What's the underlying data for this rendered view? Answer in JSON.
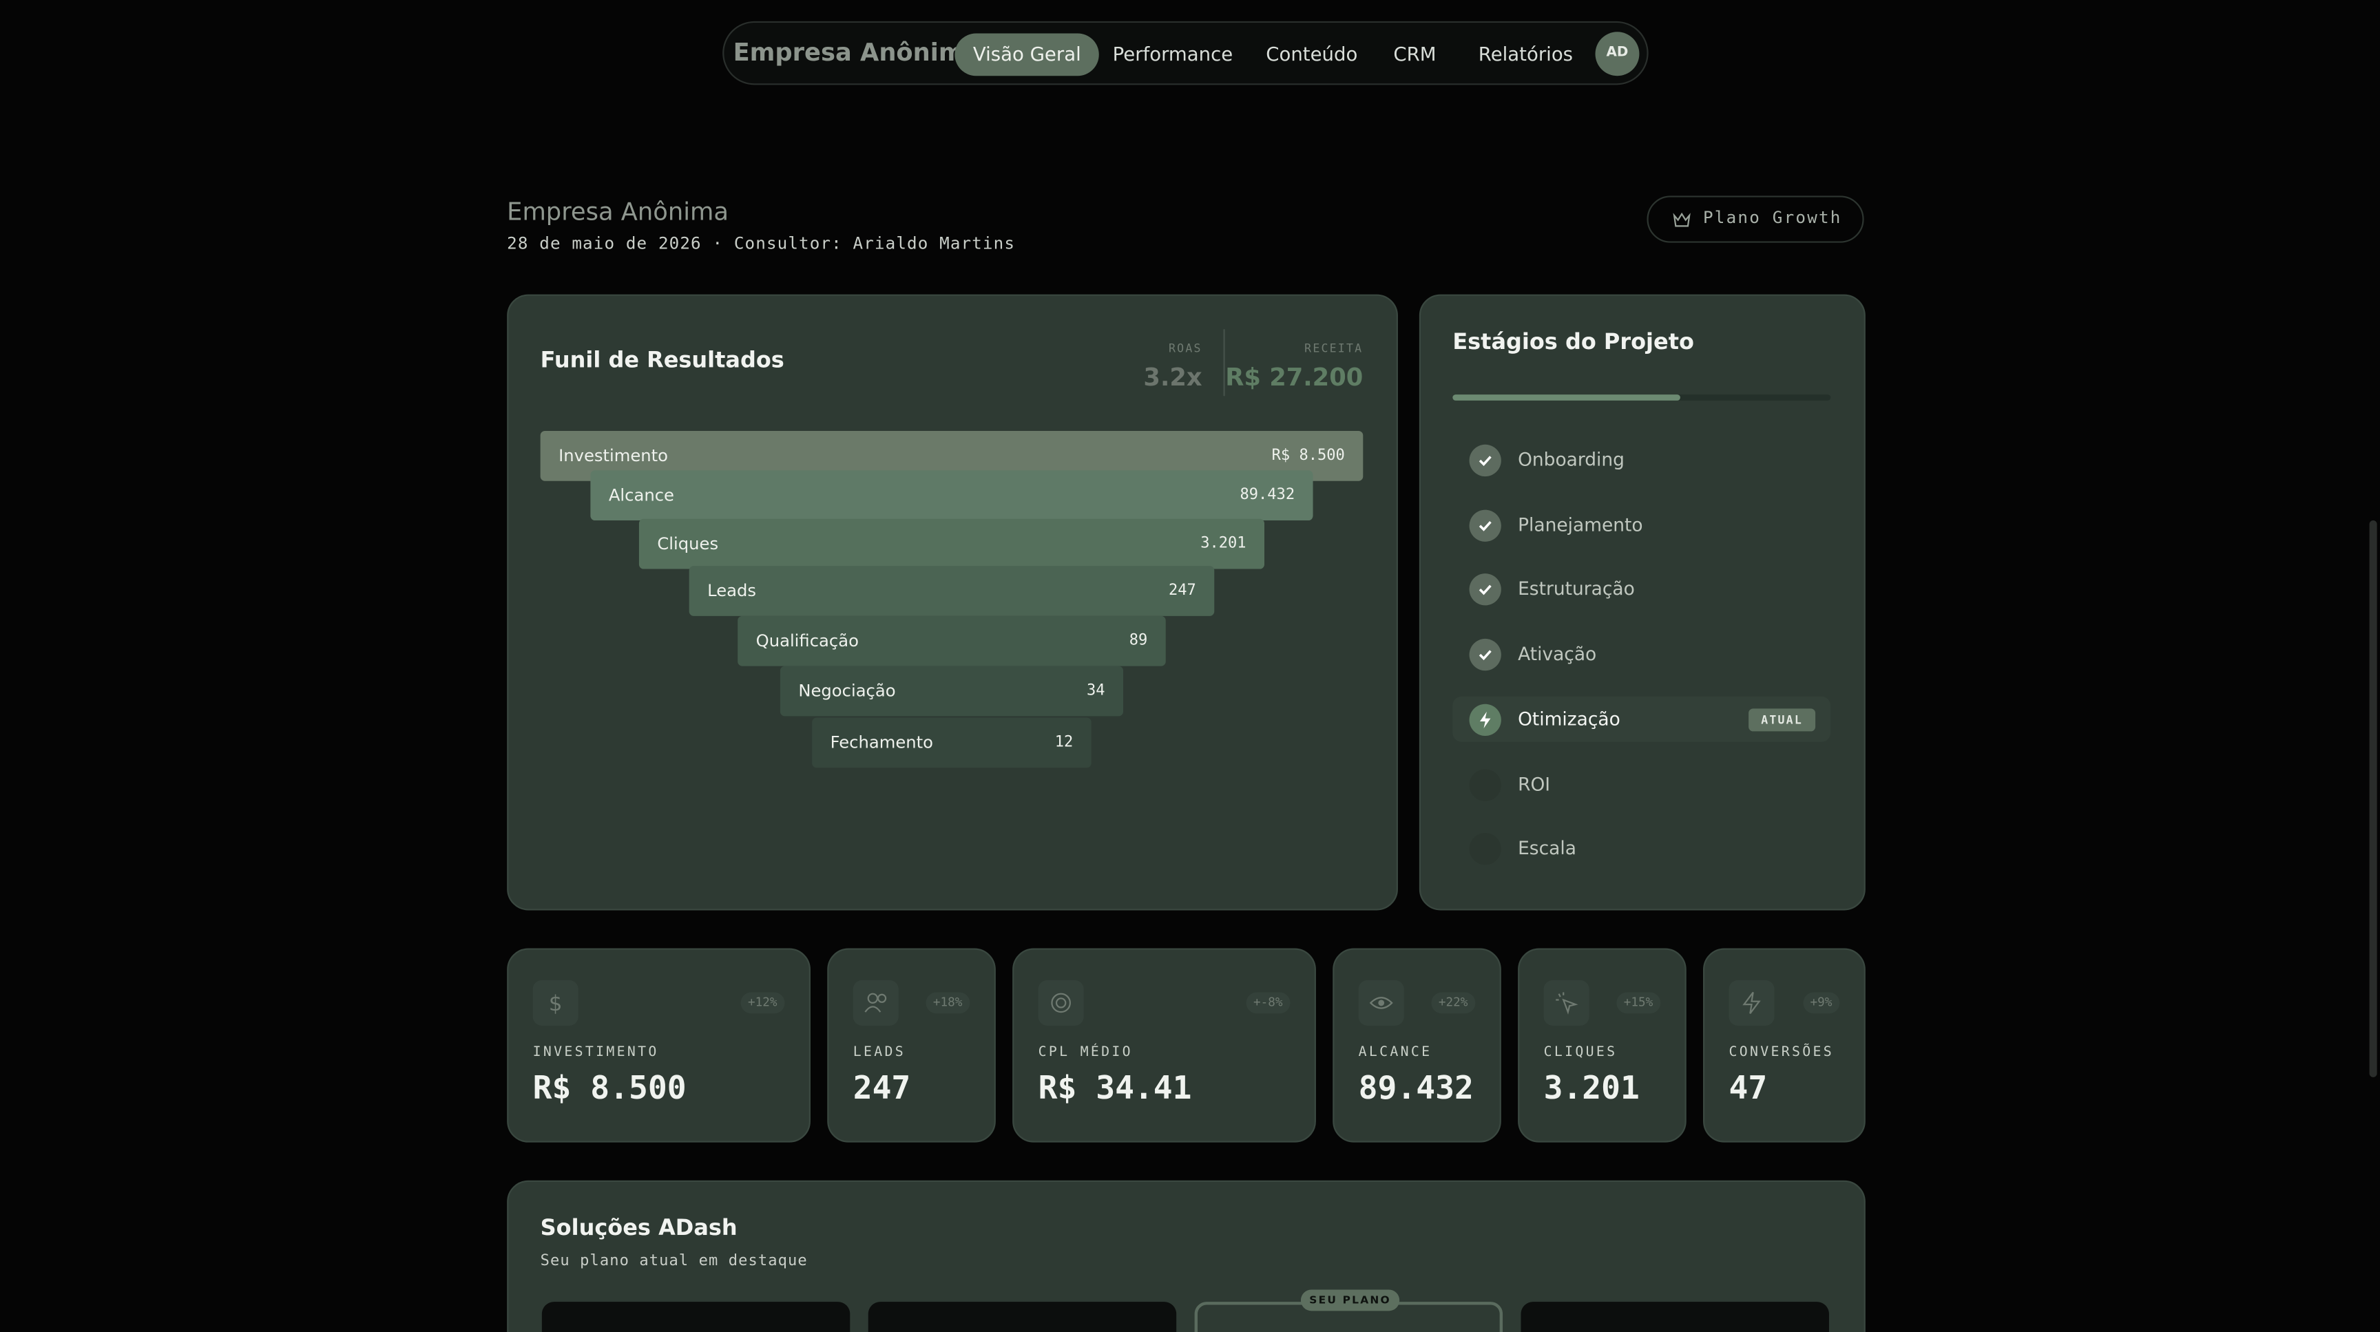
{
  "nav": {
    "brand": "Empresa Anônima",
    "tabs": [
      "Visão Geral",
      "Performance",
      "Conteúdo",
      "CRM",
      "Relatórios"
    ],
    "avatar": "AD"
  },
  "header": {
    "title": "Empresa Anônima",
    "subtitle": "28 de maio de 2026 · Consultor: Arialdo Martins",
    "badge": "Plano Growth"
  },
  "funnel": {
    "title": "Funil de Resultados",
    "stats": [
      {
        "label": "ROAS",
        "value": "3.2x"
      },
      {
        "label": "RECEITA",
        "value": "R$ 27.200"
      }
    ],
    "stages": [
      {
        "label": "Investimento",
        "value": "R$ 8.500"
      },
      {
        "label": "Alcance",
        "value": "89.432"
      },
      {
        "label": "Cliques",
        "value": "3.201"
      },
      {
        "label": "Leads",
        "value": "247"
      },
      {
        "label": "Qualificação",
        "value": "89"
      },
      {
        "label": "Negociação",
        "value": "34"
      },
      {
        "label": "Fechamento",
        "value": "12"
      }
    ]
  },
  "project": {
    "title": "Estágios do Projeto",
    "current_badge": "ATUAL",
    "items": [
      {
        "label": "Onboarding",
        "state": "done"
      },
      {
        "label": "Planejamento",
        "state": "done"
      },
      {
        "label": "Estruturação",
        "state": "done"
      },
      {
        "label": "Ativação",
        "state": "done"
      },
      {
        "label": "Otimização",
        "state": "current"
      },
      {
        "label": "ROI",
        "state": "pending"
      },
      {
        "label": "Escala",
        "state": "pending"
      }
    ]
  },
  "kpis": [
    {
      "label": "INVESTIMENTO",
      "value": "R$ 8.500",
      "change": "+12%"
    },
    {
      "label": "LEADS",
      "value": "247",
      "change": "+18%"
    },
    {
      "label": "CPL MÉDIO",
      "value": "R$ 34.41",
      "change": "+-8%"
    },
    {
      "label": "ALCANCE",
      "value": "89.432",
      "change": "+22%"
    },
    {
      "label": "CLIQUES",
      "value": "3.201",
      "change": "+15%"
    },
    {
      "label": "CONVERSÕES",
      "value": "47",
      "change": "+9%"
    }
  ],
  "solutions": {
    "title": "Soluções ADash",
    "subtitle": "Seu plano atual em destaque",
    "plan_badge": "SEU PLANO"
  }
}
